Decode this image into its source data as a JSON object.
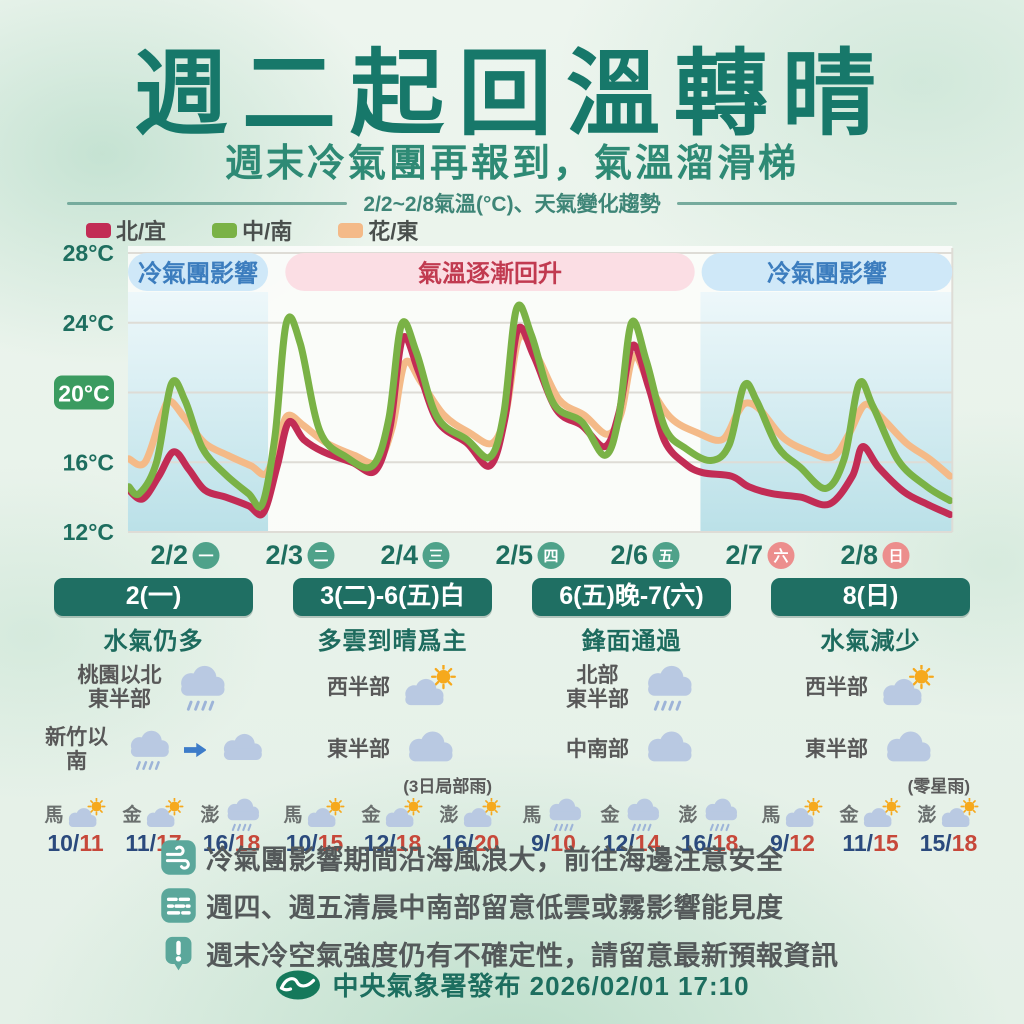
{
  "header": {
    "title": "週二起回溫轉晴",
    "subtitle": "週末冷氣團再報到，氣溫溜滑梯",
    "caption": "2/2~2/8氣溫(°C)、天氣變化趨勢"
  },
  "chart_data": {
    "type": "line",
    "title": "2/2~2/8氣溫(°C)、天氣變化趨勢",
    "ylabel": "°C",
    "ylim": [
      12,
      28
    ],
    "y_ticks": [
      28,
      24,
      20,
      16,
      12
    ],
    "y_highlight": 20,
    "grid": true,
    "legend_position": "top-left",
    "x_days": [
      {
        "date": "2/2",
        "dow": "一",
        "weekend": false,
        "day": 2
      },
      {
        "date": "2/3",
        "dow": "二",
        "weekend": false,
        "day": 3
      },
      {
        "date": "2/4",
        "dow": "三",
        "weekend": false,
        "day": 4
      },
      {
        "date": "2/5",
        "dow": "四",
        "weekend": false,
        "day": 5
      },
      {
        "date": "2/6",
        "dow": "五",
        "weekend": false,
        "day": 6
      },
      {
        "date": "2/7",
        "dow": "六",
        "weekend": true,
        "day": 7
      },
      {
        "date": "2/8",
        "dow": "日",
        "weekend": true,
        "day": 8
      }
    ],
    "annotations": [
      {
        "label": "冷氣團影響",
        "day_start": 1.652,
        "day_end": 2.87,
        "bg": "#cfe8f8",
        "fg": "#3c7dbe"
      },
      {
        "label": "氣溫逐漸回升",
        "day_start": 3.02,
        "day_end": 6.58,
        "bg": "#fbdee4",
        "fg": "#c13a50"
      },
      {
        "label": "冷氣團影響",
        "day_start": 6.64,
        "day_end": 8.82,
        "bg": "#cfe8f8",
        "fg": "#3c7dbe"
      }
    ],
    "shaded_regions": [
      {
        "day_start": 1.652,
        "day_end": 2.87
      },
      {
        "day_start": 6.63,
        "day_end": 8.82
      }
    ],
    "series": [
      {
        "name": "北/宜",
        "color": "#c22c55",
        "points": [
          [
            1.66,
            14.4
          ],
          [
            1.78,
            13.9
          ],
          [
            1.92,
            15.2
          ],
          [
            2.05,
            16.6
          ],
          [
            2.18,
            15.6
          ],
          [
            2.32,
            14.4
          ],
          [
            2.5,
            14.0
          ],
          [
            2.7,
            13.5
          ],
          [
            2.83,
            13.1
          ],
          [
            2.95,
            15.8
          ],
          [
            3.05,
            18.3
          ],
          [
            3.18,
            17.3
          ],
          [
            3.35,
            16.6
          ],
          [
            3.6,
            16.0
          ],
          [
            3.8,
            15.5
          ],
          [
            3.93,
            18.0
          ],
          [
            4.04,
            23.1
          ],
          [
            4.18,
            21.2
          ],
          [
            4.35,
            18.3
          ],
          [
            4.6,
            17.1
          ],
          [
            4.8,
            15.8
          ],
          [
            4.93,
            18.5
          ],
          [
            5.04,
            23.6
          ],
          [
            5.18,
            22.1
          ],
          [
            5.38,
            19.0
          ],
          [
            5.6,
            18.1
          ],
          [
            5.8,
            16.9
          ],
          [
            5.92,
            18.8
          ],
          [
            6.04,
            22.7
          ],
          [
            6.18,
            20.3
          ],
          [
            6.32,
            17.2
          ],
          [
            6.5,
            15.9
          ],
          [
            6.65,
            15.4
          ],
          [
            6.9,
            15.2
          ],
          [
            7.05,
            14.6
          ],
          [
            7.25,
            14.2
          ],
          [
            7.5,
            14.0
          ],
          [
            7.75,
            13.6
          ],
          [
            7.95,
            15.2
          ],
          [
            8.04,
            16.9
          ],
          [
            8.18,
            15.7
          ],
          [
            8.4,
            14.3
          ],
          [
            8.6,
            13.6
          ],
          [
            8.8,
            13.0
          ]
        ]
      },
      {
        "name": "中/南",
        "color": "#7ab246",
        "points": [
          [
            1.66,
            14.6
          ],
          [
            1.75,
            14.2
          ],
          [
            1.9,
            16.0
          ],
          [
            2.03,
            20.5
          ],
          [
            2.15,
            19.5
          ],
          [
            2.3,
            16.8
          ],
          [
            2.5,
            15.3
          ],
          [
            2.7,
            14.2
          ],
          [
            2.82,
            13.6
          ],
          [
            2.93,
            17.5
          ],
          [
            3.03,
            24.0
          ],
          [
            3.15,
            22.8
          ],
          [
            3.32,
            17.8
          ],
          [
            3.55,
            16.3
          ],
          [
            3.78,
            15.8
          ],
          [
            3.92,
            18.5
          ],
          [
            4.03,
            23.9
          ],
          [
            4.16,
            22.3
          ],
          [
            4.34,
            18.6
          ],
          [
            4.6,
            17.3
          ],
          [
            4.8,
            16.3
          ],
          [
            4.92,
            18.8
          ],
          [
            5.03,
            24.8
          ],
          [
            5.16,
            23.3
          ],
          [
            5.35,
            19.4
          ],
          [
            5.6,
            18.3
          ],
          [
            5.8,
            16.4
          ],
          [
            5.92,
            18.6
          ],
          [
            6.03,
            24.0
          ],
          [
            6.16,
            21.8
          ],
          [
            6.32,
            18.0
          ],
          [
            6.5,
            16.8
          ],
          [
            6.72,
            16.1
          ],
          [
            6.88,
            17.0
          ],
          [
            7.01,
            20.4
          ],
          [
            7.12,
            19.5
          ],
          [
            7.3,
            16.9
          ],
          [
            7.5,
            15.7
          ],
          [
            7.72,
            14.5
          ],
          [
            7.88,
            16.2
          ],
          [
            8.01,
            20.5
          ],
          [
            8.13,
            19.2
          ],
          [
            8.35,
            16.1
          ],
          [
            8.6,
            14.6
          ],
          [
            8.8,
            13.8
          ]
        ]
      },
      {
        "name": "花/東",
        "color": "#f4ba88",
        "points": [
          [
            1.66,
            16.2
          ],
          [
            1.8,
            16.0
          ],
          [
            1.95,
            18.8
          ],
          [
            2.02,
            19.5
          ],
          [
            2.15,
            18.5
          ],
          [
            2.32,
            17.1
          ],
          [
            2.52,
            16.4
          ],
          [
            2.72,
            15.8
          ],
          [
            2.86,
            15.4
          ],
          [
            2.98,
            17.8
          ],
          [
            3.05,
            18.7
          ],
          [
            3.18,
            18.1
          ],
          [
            3.38,
            17.1
          ],
          [
            3.62,
            16.4
          ],
          [
            3.82,
            16.0
          ],
          [
            3.95,
            18.0
          ],
          [
            4.06,
            21.7
          ],
          [
            4.2,
            20.6
          ],
          [
            4.4,
            18.7
          ],
          [
            4.62,
            17.7
          ],
          [
            4.82,
            17.1
          ],
          [
            4.94,
            18.9
          ],
          [
            5.05,
            23.1
          ],
          [
            5.2,
            22.2
          ],
          [
            5.4,
            19.6
          ],
          [
            5.62,
            18.7
          ],
          [
            5.82,
            17.6
          ],
          [
            5.94,
            18.8
          ],
          [
            6.05,
            22.1
          ],
          [
            6.2,
            20.2
          ],
          [
            6.38,
            18.5
          ],
          [
            6.6,
            17.7
          ],
          [
            6.82,
            17.3
          ],
          [
            6.95,
            18.8
          ],
          [
            7.03,
            19.4
          ],
          [
            7.15,
            19.0
          ],
          [
            7.35,
            17.4
          ],
          [
            7.58,
            16.6
          ],
          [
            7.78,
            16.3
          ],
          [
            7.92,
            17.6
          ],
          [
            8.06,
            19.3
          ],
          [
            8.2,
            18.6
          ],
          [
            8.42,
            17.1
          ],
          [
            8.62,
            16.2
          ],
          [
            8.8,
            15.2
          ]
        ]
      }
    ]
  },
  "columns": [
    {
      "header": "2(一)",
      "subtitle": "水氣仍多",
      "rows": [
        {
          "region": "桃園以北\n東半部",
          "icons": [
            "rain"
          ],
          "note": ""
        },
        {
          "region": "新竹以南",
          "icons": [
            "rain",
            "arrow",
            "cloud"
          ],
          "note": ""
        }
      ],
      "islands": [
        {
          "name": "馬",
          "icon": "partly",
          "low": "10",
          "high": "11"
        },
        {
          "name": "金",
          "icon": "partly",
          "low": "11",
          "high": "17"
        },
        {
          "name": "澎",
          "icon": "rain",
          "low": "16",
          "high": "18"
        }
      ]
    },
    {
      "header": "3(二)-6(五)白",
      "subtitle": "多雲到晴爲主",
      "rows": [
        {
          "region": "西半部",
          "icons": [
            "partly"
          ],
          "note": ""
        },
        {
          "region": "東半部",
          "icons": [
            "cloud"
          ],
          "note": "(3日局部雨)"
        }
      ],
      "islands": [
        {
          "name": "馬",
          "icon": "partly",
          "low": "10",
          "high": "15"
        },
        {
          "name": "金",
          "icon": "partly",
          "low": "12",
          "high": "18"
        },
        {
          "name": "澎",
          "icon": "partly",
          "low": "16",
          "high": "20"
        }
      ]
    },
    {
      "header": "6(五)晚-7(六)",
      "subtitle": "鋒面通過",
      "rows": [
        {
          "region": "北部\n東半部",
          "icons": [
            "rain"
          ],
          "note": ""
        },
        {
          "region": "中南部",
          "icons": [
            "cloud"
          ],
          "note": ""
        }
      ],
      "islands": [
        {
          "name": "馬",
          "icon": "rain",
          "low": "9",
          "high": "10"
        },
        {
          "name": "金",
          "icon": "rain",
          "low": "12",
          "high": "14"
        },
        {
          "name": "澎",
          "icon": "rain",
          "low": "16",
          "high": "18"
        }
      ]
    },
    {
      "header": "8(日)",
      "subtitle": "水氣減少",
      "rows": [
        {
          "region": "西半部",
          "icons": [
            "partly"
          ],
          "note": ""
        },
        {
          "region": "東半部",
          "icons": [
            "cloud"
          ],
          "note": "(零星雨)"
        }
      ],
      "islands": [
        {
          "name": "馬",
          "icon": "partly",
          "low": "9",
          "high": "12"
        },
        {
          "name": "金",
          "icon": "partly",
          "low": "11",
          "high": "15"
        },
        {
          "name": "澎",
          "icon": "partly",
          "low": "15",
          "high": "18"
        }
      ]
    }
  ],
  "notes": [
    {
      "icon": "wind",
      "text": "冷氣團影響期間沿海風浪大，前往海邊注意安全"
    },
    {
      "icon": "fog",
      "text": "週四、週五清晨中南部留意低雲或霧影響能見度"
    },
    {
      "icon": "alert",
      "text": "週末冷空氣強度仍有不確定性，請留意最新預報資訊"
    }
  ],
  "footer": {
    "text": "中央氣象署發布 2026/02/01 17:10"
  },
  "colors": {
    "title": "#17786a",
    "subtitle": "#2e8a75",
    "axis_label": "#1e6e5f",
    "y_badge_bg": "#3b9b60",
    "weekday_circle": "#4fa28a",
    "weekend_circle": "#ec8e8d",
    "column_header_bg": "#1f6f63",
    "note_icon_bg": "#5ba79b",
    "temp_low": "#2b4a7d",
    "temp_high": "#c7483a",
    "cloud": "#b9c9e2",
    "sun": "#f6a91d",
    "arrow": "#3d7cc9"
  }
}
